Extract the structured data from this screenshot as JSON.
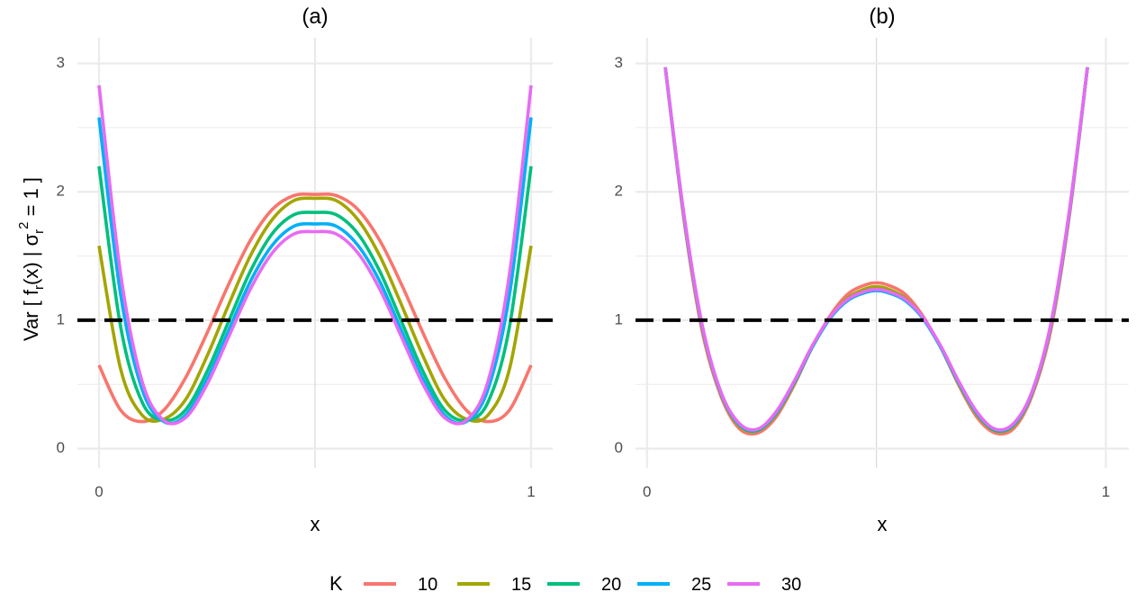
{
  "legend": {
    "title": "K",
    "placement": "bottom",
    "entries": [
      {
        "label": "10",
        "color": "#F8766D"
      },
      {
        "label": "15",
        "color": "#A3A500"
      },
      {
        "label": "20",
        "color": "#00BF7D"
      },
      {
        "label": "25",
        "color": "#00B0F6"
      },
      {
        "label": "30",
        "color": "#E76BF3"
      }
    ]
  },
  "ylabel": "Var [ f_r(x) | σ_r^2 = 1 ]",
  "chart_data": [
    {
      "type": "line",
      "title": "(a)",
      "xlabel": "x",
      "xlim": [
        -0.05,
        1.05
      ],
      "ylim": [
        -0.15,
        3.2
      ],
      "xticks": [
        "0",
        "1"
      ],
      "yticks": [
        "0",
        "1",
        "2",
        "3"
      ],
      "grid": true,
      "hline": {
        "y": 1,
        "style": "dashed",
        "color": "#000000"
      },
      "x": [
        0,
        0.05,
        0.1,
        0.15,
        0.2,
        0.25,
        0.3,
        0.35,
        0.4,
        0.45,
        0.5,
        0.55,
        0.6,
        0.65,
        0.7,
        0.75,
        0.8,
        0.85,
        0.9,
        0.95,
        1
      ],
      "series": [
        {
          "name": "10",
          "values": [
            0.65,
            0.3,
            0.21,
            0.3,
            0.55,
            0.9,
            1.28,
            1.62,
            1.86,
            1.97,
            1.98,
            1.97,
            1.86,
            1.62,
            1.28,
            0.9,
            0.55,
            0.3,
            0.21,
            0.3,
            0.65
          ]
        },
        {
          "name": "15",
          "values": [
            1.58,
            0.62,
            0.26,
            0.23,
            0.38,
            0.72,
            1.12,
            1.5,
            1.78,
            1.93,
            1.95,
            1.93,
            1.78,
            1.5,
            1.12,
            0.72,
            0.38,
            0.23,
            0.26,
            0.62,
            1.58
          ]
        },
        {
          "name": "20",
          "values": [
            2.2,
            0.95,
            0.36,
            0.22,
            0.3,
            0.6,
            0.99,
            1.38,
            1.67,
            1.82,
            1.84,
            1.82,
            1.67,
            1.38,
            0.99,
            0.6,
            0.3,
            0.22,
            0.36,
            0.95,
            2.2
          ]
        },
        {
          "name": "25",
          "values": [
            2.58,
            1.2,
            0.46,
            0.21,
            0.26,
            0.54,
            0.92,
            1.3,
            1.58,
            1.73,
            1.75,
            1.73,
            1.58,
            1.3,
            0.92,
            0.54,
            0.26,
            0.21,
            0.46,
            1.2,
            2.58
          ]
        },
        {
          "name": "30",
          "values": [
            2.83,
            1.36,
            0.52,
            0.22,
            0.24,
            0.5,
            0.87,
            1.24,
            1.52,
            1.67,
            1.69,
            1.67,
            1.52,
            1.24,
            0.87,
            0.5,
            0.24,
            0.22,
            0.52,
            1.36,
            2.83
          ]
        }
      ]
    },
    {
      "type": "line",
      "title": "(b)",
      "xlabel": "x",
      "xlim": [
        -0.025,
        1.05
      ],
      "ylim": [
        -0.15,
        3.2
      ],
      "xticks": [
        "0",
        "1"
      ],
      "yticks": [
        "0",
        "1",
        "2",
        "3"
      ],
      "grid": true,
      "hline": {
        "y": 1,
        "style": "dashed",
        "color": "#000000"
      },
      "x": [
        0.04,
        0.08,
        0.12,
        0.16,
        0.2,
        0.24,
        0.28,
        0.32,
        0.36,
        0.4,
        0.44,
        0.48,
        0.5,
        0.52,
        0.56,
        0.6,
        0.64,
        0.68,
        0.72,
        0.76,
        0.8,
        0.84,
        0.88,
        0.92,
        0.96
      ],
      "series": [
        {
          "name": "10",
          "values": [
            2.97,
            1.8,
            0.92,
            0.42,
            0.16,
            0.12,
            0.24,
            0.49,
            0.79,
            1.04,
            1.21,
            1.28,
            1.29,
            1.28,
            1.21,
            1.04,
            0.79,
            0.49,
            0.24,
            0.12,
            0.16,
            0.42,
            0.92,
            1.8,
            2.97
          ]
        },
        {
          "name": "15",
          "values": [
            2.97,
            1.82,
            0.95,
            0.44,
            0.18,
            0.14,
            0.26,
            0.5,
            0.79,
            1.03,
            1.18,
            1.25,
            1.26,
            1.25,
            1.18,
            1.03,
            0.79,
            0.5,
            0.26,
            0.14,
            0.18,
            0.44,
            0.95,
            1.82,
            2.97
          ]
        },
        {
          "name": "20",
          "values": [
            2.97,
            1.83,
            0.96,
            0.44,
            0.19,
            0.14,
            0.27,
            0.51,
            0.79,
            1.02,
            1.17,
            1.23,
            1.24,
            1.23,
            1.17,
            1.02,
            0.79,
            0.51,
            0.27,
            0.14,
            0.19,
            0.44,
            0.96,
            1.83,
            2.97
          ]
        },
        {
          "name": "25",
          "values": [
            2.97,
            1.83,
            0.96,
            0.45,
            0.19,
            0.15,
            0.27,
            0.51,
            0.79,
            1.02,
            1.16,
            1.22,
            1.23,
            1.22,
            1.16,
            1.02,
            0.79,
            0.51,
            0.27,
            0.15,
            0.19,
            0.45,
            0.96,
            1.83,
            2.97
          ]
        },
        {
          "name": "30",
          "values": [
            2.97,
            1.84,
            0.97,
            0.45,
            0.2,
            0.15,
            0.28,
            0.52,
            0.8,
            1.03,
            1.17,
            1.23,
            1.24,
            1.23,
            1.17,
            1.03,
            0.8,
            0.52,
            0.28,
            0.15,
            0.2,
            0.45,
            0.97,
            1.84,
            2.97
          ]
        }
      ]
    }
  ]
}
